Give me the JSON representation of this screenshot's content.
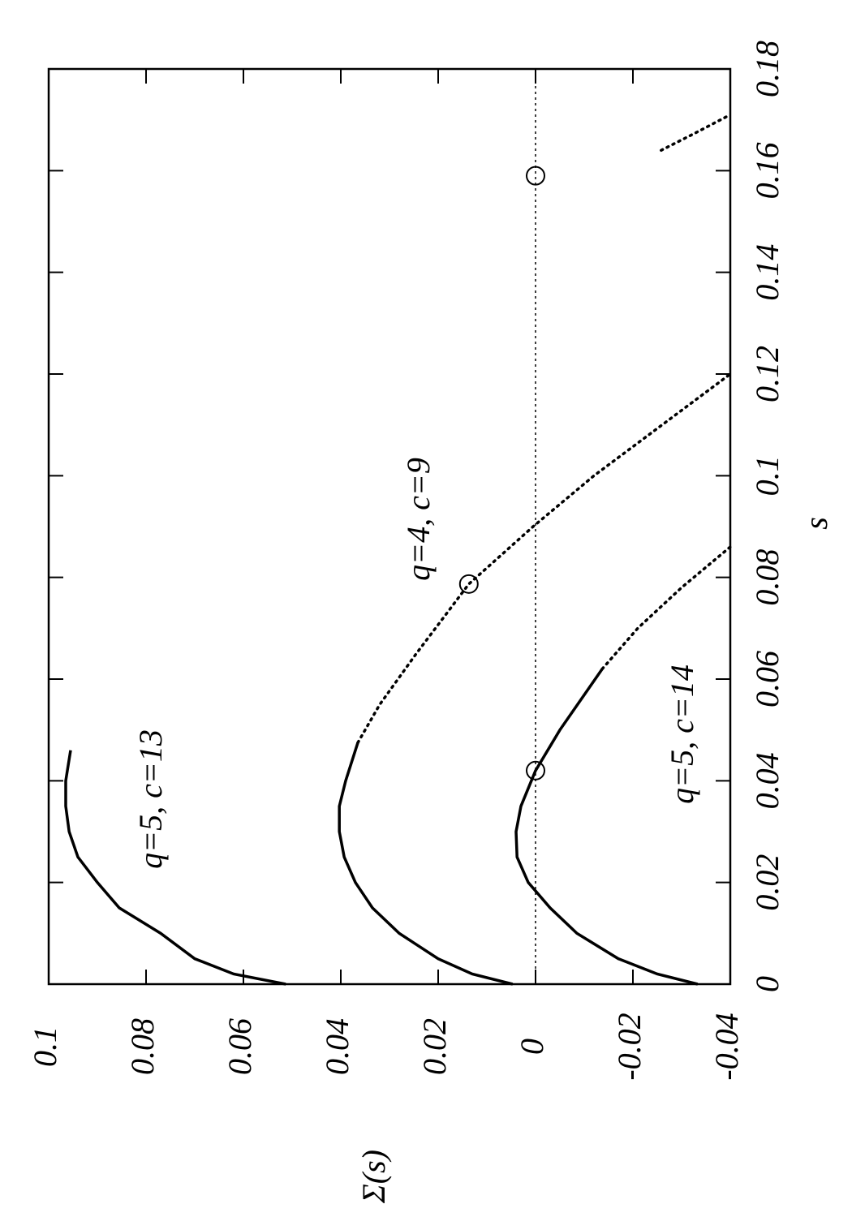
{
  "chart_data": {
    "type": "line",
    "orientation": "rotated",
    "xlabel": "s",
    "ylabel": "Σ(s)",
    "xlim": [
      0,
      0.18
    ],
    "xticks": [
      0,
      0.02,
      0.04,
      0.06,
      0.08,
      0.1,
      0.12,
      0.14,
      0.16,
      0.18
    ],
    "ylim": [
      -0.04,
      0.1
    ],
    "yticks": [
      -0.04,
      -0.02,
      0,
      0.02,
      0.04,
      0.06,
      0.08,
      0.1
    ],
    "reference_line": 0,
    "annotations": [
      "q=5, c=13",
      "q=4, c=9",
      "q=5, c=14"
    ],
    "series": [
      {
        "color": "#000000",
        "style": "solid",
        "x": [
          0,
          0.002,
          0.005,
          0.01,
          0.015,
          0.02,
          0.025,
          0.03,
          0.035,
          0.04,
          0.046
        ],
        "values": [
          0.0513,
          0.062,
          0.07,
          0.077,
          0.0855,
          0.09,
          0.094,
          0.0958,
          0.0965,
          0.0965,
          0.0955
        ]
      },
      {
        "color": "#000000",
        "style": "solid",
        "x": [
          0,
          0.002,
          0.005,
          0.01,
          0.015,
          0.02,
          0.025,
          0.03,
          0.035,
          0.04,
          0.0475
        ],
        "values": [
          0.0047,
          0.013,
          0.02,
          0.028,
          0.0335,
          0.037,
          0.0393,
          0.0403,
          0.0403,
          0.039,
          0.0365
        ]
      },
      {
        "color": "#000000",
        "style": "dotted",
        "x": [
          0.0475,
          0.055,
          0.065,
          0.0787,
          0.09,
          0.1,
          0.11,
          0.12
        ],
        "values": [
          0.0365,
          0.032,
          0.0245,
          0.0137,
          0.0005,
          -0.012,
          -0.026,
          -0.04
        ]
      },
      {
        "color": "#000000",
        "style": "solid",
        "x": [
          0,
          0.002,
          0.005,
          0.01,
          0.015,
          0.02,
          0.025,
          0.03,
          0.035,
          0.042,
          0.05,
          0.062
        ],
        "values": [
          -0.0333,
          -0.025,
          -0.017,
          -0.0085,
          -0.003,
          0.0015,
          0.0038,
          0.004,
          0.003,
          0,
          -0.005,
          -0.0137
        ]
      },
      {
        "color": "#000000",
        "style": "dotted",
        "x": [
          0.062,
          0.07,
          0.078,
          0.086
        ],
        "values": [
          -0.0137,
          -0.021,
          -0.03,
          -0.04
        ]
      },
      {
        "color": "#000000",
        "style": "dotted",
        "x": [
          0.164,
          0.1675,
          0.171
        ],
        "values": [
          -0.0258,
          -0.033,
          -0.04
        ]
      },
      {
        "color": "#000000",
        "style": "circles",
        "x": [
          0.0787,
          0.042,
          0.159
        ],
        "values": [
          0.0137,
          0,
          0
        ]
      }
    ]
  }
}
